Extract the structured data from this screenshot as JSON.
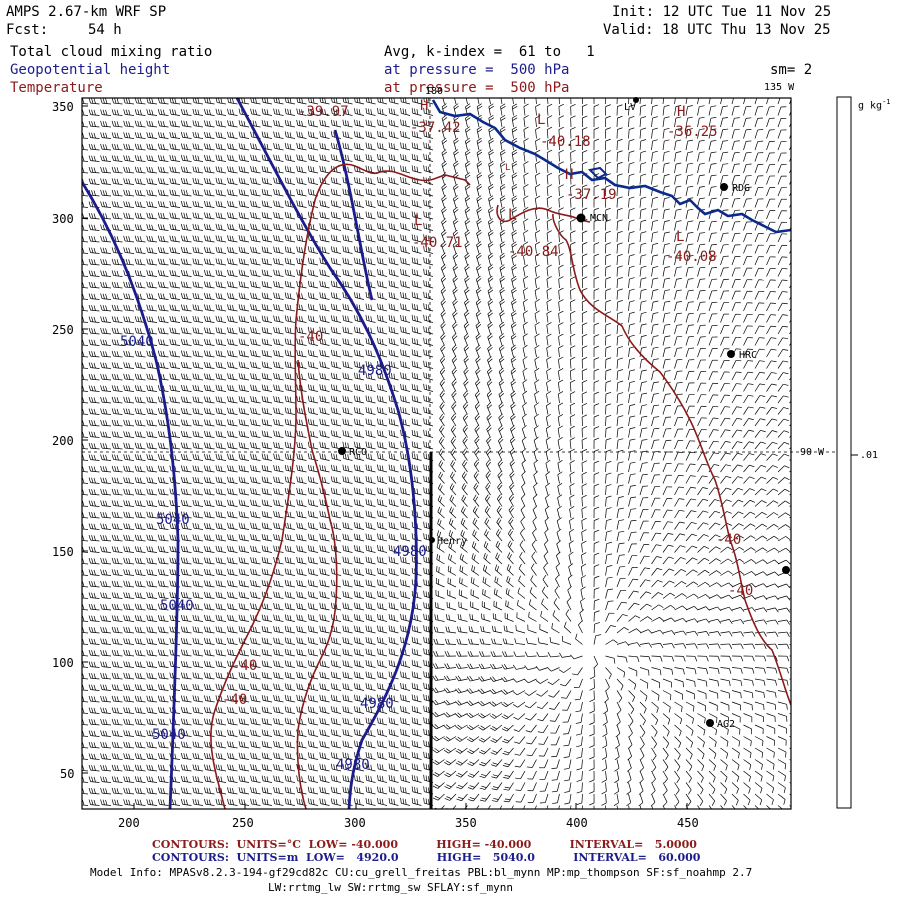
{
  "header": {
    "model": "AMPS 2.67-km WRF SP",
    "fcst_label": "Fcst:",
    "fcst_value": "54 h",
    "init": "Init: 12 UTC Tue 11 Nov 25",
    "valid": "Valid: 18 UTC Thu 13 Nov 25",
    "field1": "Total cloud mixing ratio",
    "field2": "Geopotential height",
    "field3": "Temperature",
    "avg": "Avg, k-index =  61 to   1",
    "pressure1": "at pressure =  500 hPa",
    "pressure2": "at pressure =  500 hPa",
    "sm": "sm= 2"
  },
  "axes": {
    "x_ticks": [
      "200",
      "250",
      "300",
      "350",
      "400",
      "450"
    ],
    "y_ticks": [
      "350",
      "300",
      "250",
      "200",
      "150",
      "100",
      "50"
    ],
    "lon_top_180": "180",
    "lon_top_135": "135 W",
    "lon_right_90": "90 W"
  },
  "colorbar": {
    "units": "g kg",
    "units_sup": "-1",
    "tick": ".01"
  },
  "stations": [
    {
      "name": "RDG"
    },
    {
      "name": "MCN"
    },
    {
      "name": "HRC"
    },
    {
      "name": "RCO"
    },
    {
      "name": "Henry"
    },
    {
      "name": "AG2"
    },
    {
      "name": "LV"
    }
  ],
  "height_labels": [
    "5040",
    "5040",
    "5040",
    "5040",
    "4980",
    "4980",
    "4980",
    "4980"
  ],
  "temp_labels": [
    "-39.97",
    "-37.42",
    "-40.18",
    "-36.25",
    "-37.19",
    "-40.71",
    "-40.84",
    "-40.08",
    "-40",
    "-40",
    "-40",
    "-40",
    "-40"
  ],
  "hl_markers": [
    "H",
    "H",
    "L",
    "L",
    "H",
    "L",
    "L",
    "L"
  ],
  "footer": {
    "temp_line": "CONTOURS:  UNITS=°C  LOW= -40.000          HIGH= -40.000          INTERVAL=   5.0000",
    "height_line": "CONTOURS:  UNITS=m  LOW=   4920.0          HIGH=   5040.0          INTERVAL=   60.000",
    "model_info": "Model Info: MPASv8.2.3-194-gf29cd82c CU:cu_grell_freitas PBL:bl_mynn MP:mp_thompson SF:sf_noahmp 2.7",
    "model_info2": "LW:rrtmg_lw SW:rrtmg_sw SFLAY:sf_mynn"
  },
  "colors": {
    "height": "#1c1c8c",
    "temperature": "#8b1a1a",
    "coast": "#0a2a8c"
  }
}
